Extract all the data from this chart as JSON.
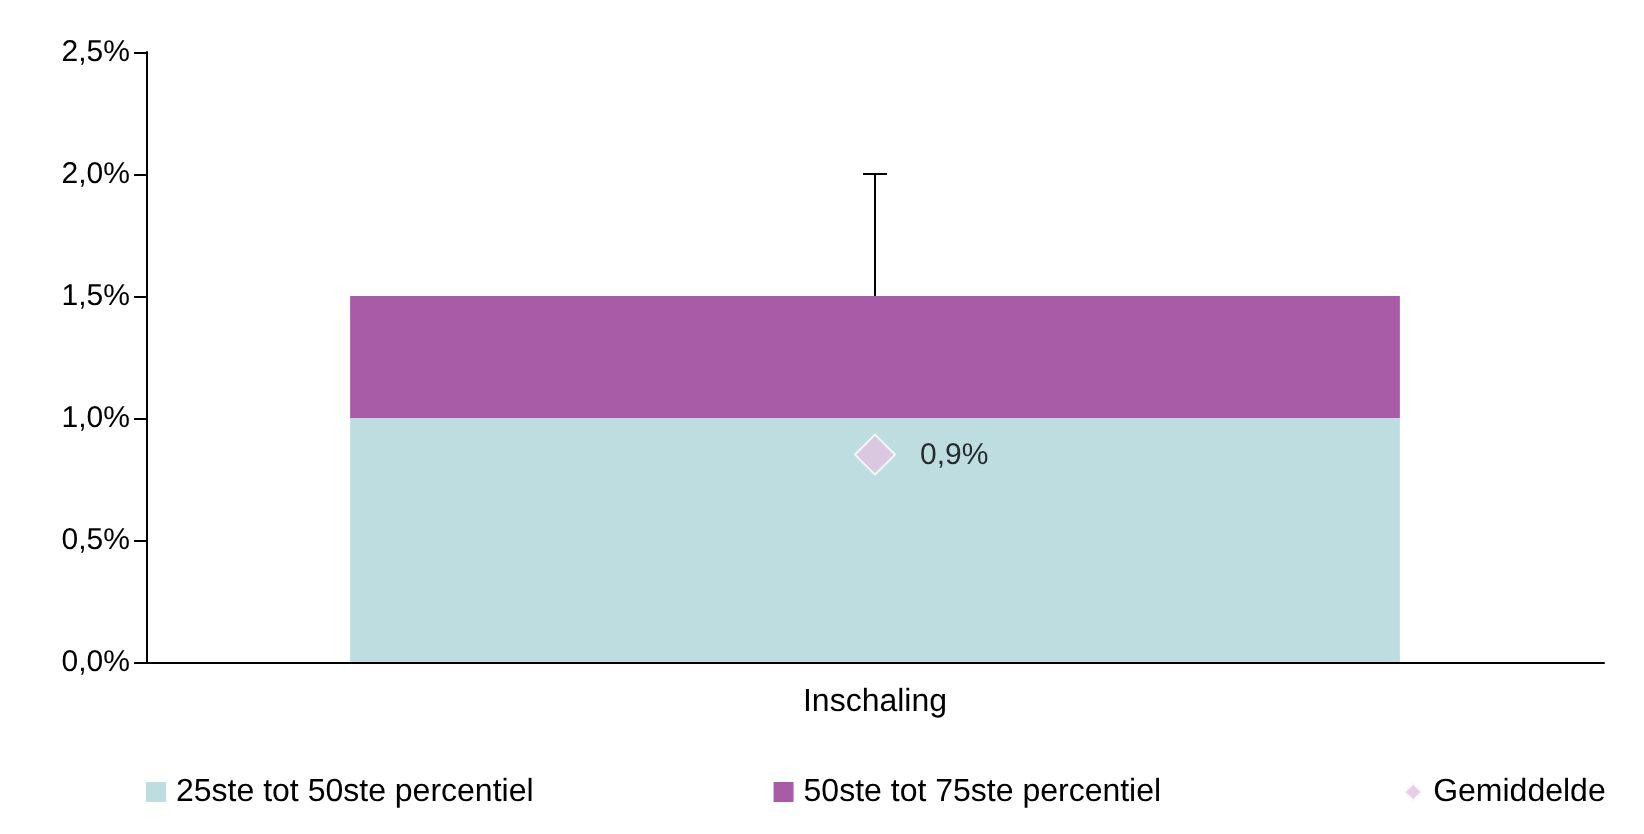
{
  "chart_data": {
    "type": "bar",
    "stacked": true,
    "categories": [
      "Inschaling"
    ],
    "series": [
      {
        "name": "25ste tot 50ste percentiel",
        "color": "#bddde1",
        "values": [
          1.0
        ]
      },
      {
        "name": "50ste tot 75ste percentiel",
        "color": "#a85ca8",
        "values": [
          0.5
        ],
        "errors": [
          [
            1.5,
            2.0
          ]
        ]
      },
      {
        "name": "Gemiddelde",
        "type": "scatter",
        "color": "#e0c3e0",
        "marker": "diamond",
        "x": [
          "Inschaling"
        ],
        "values": [
          0.85
        ],
        "value_labels": [
          "0,9%"
        ]
      }
    ],
    "ylim": [
      0,
      2.5
    ],
    "yticks": [
      {
        "value": 0,
        "label": "0,0%"
      },
      {
        "value": 0.5,
        "label": "0,5%"
      },
      {
        "value": 1.0,
        "label": "1,0%"
      },
      {
        "value": 1.5,
        "label": "1,5%"
      },
      {
        "value": 2.0,
        "label": "2,0%"
      },
      {
        "value": 2.5,
        "label": "2,5%"
      }
    ],
    "grid": false,
    "legend": "bottom"
  }
}
